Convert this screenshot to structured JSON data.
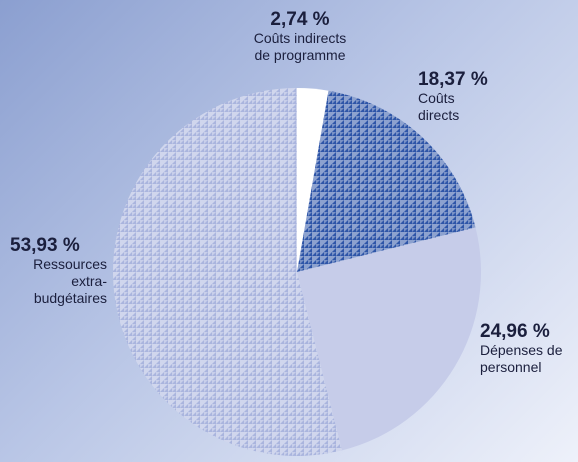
{
  "chart_data": {
    "type": "pie",
    "categories": [
      "Coûts indirects\nde programme",
      "Coûts\ndirects",
      "Dépenses de\npersonnel",
      "Ressources\nextra-\nbudgétaires"
    ],
    "values": [
      2.74,
      18.37,
      24.96,
      53.93
    ],
    "value_labels": [
      "2,74 %",
      "18,37 %",
      "24,96 %",
      "53,93 %"
    ],
    "colors": [
      "#ffffff",
      "#2f56a8",
      "#c6cce9",
      "#aab5de"
    ],
    "patterned": [
      false,
      true,
      false,
      true
    ]
  }
}
